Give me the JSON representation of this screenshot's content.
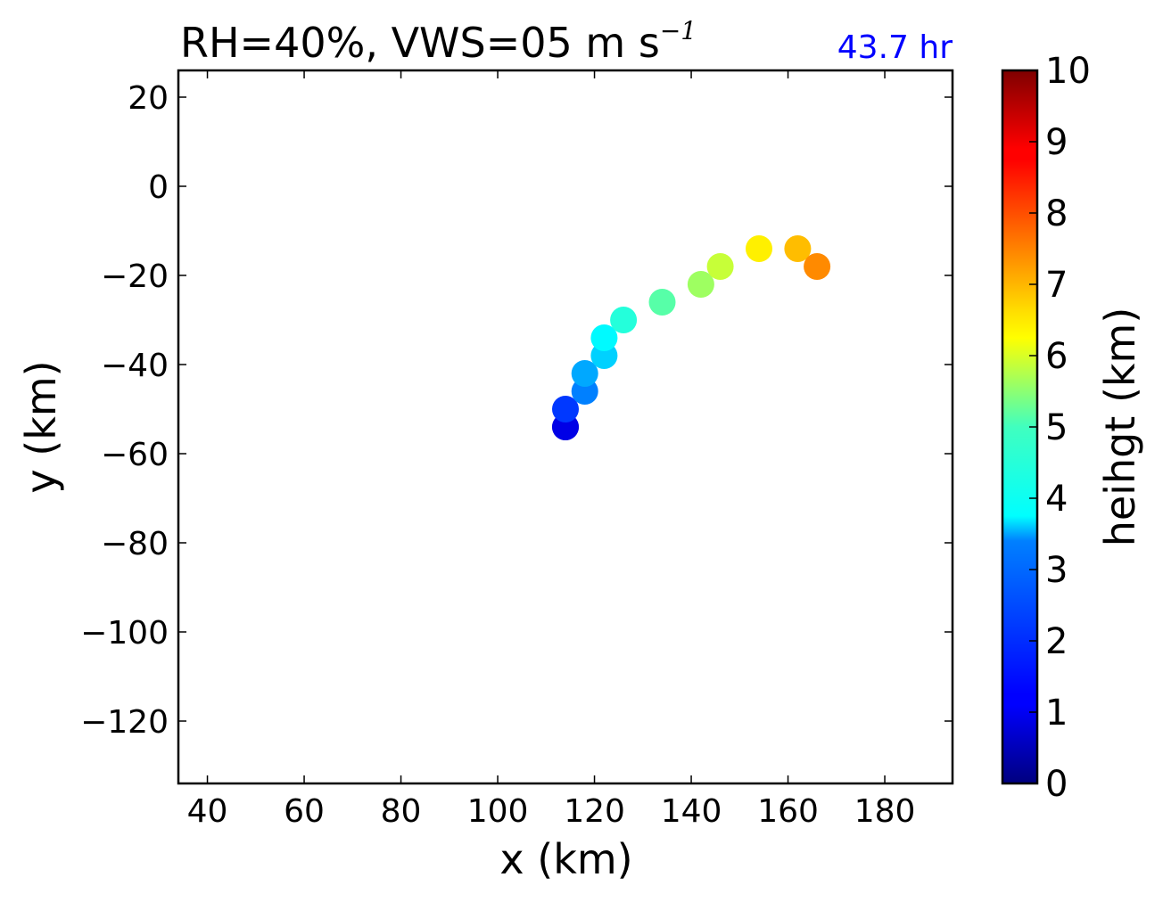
{
  "chart_data": {
    "type": "scatter",
    "title_main": "RH=40%, VWS=05 m s",
    "title_sup": "−1",
    "time_label": "43.7 hr",
    "time_label_color": "#0000ff",
    "xlabel": "x (km)",
    "ylabel": "y (km)",
    "xlim": [
      34,
      194
    ],
    "ylim": [
      -134,
      26
    ],
    "xticks": [
      40,
      60,
      80,
      100,
      120,
      140,
      160,
      180
    ],
    "xtick_labels": [
      "40",
      "60",
      "80",
      "100",
      "120",
      "140",
      "160",
      "180"
    ],
    "yticks": [
      20,
      0,
      -20,
      -40,
      -60,
      -80,
      -100,
      -120
    ],
    "ytick_labels": [
      "20",
      "0",
      "−20",
      "−40",
      "−60",
      "−80",
      "−100",
      "−120"
    ],
    "grid": false,
    "colormap": "jet",
    "colorbar": {
      "label": "heihgt (km)",
      "range": [
        0,
        10
      ],
      "ticks": [
        0,
        1,
        2,
        3,
        4,
        5,
        6,
        7,
        8,
        9,
        10
      ],
      "tick_labels": [
        "0",
        "1",
        "2",
        "3",
        "4",
        "5",
        "6",
        "7",
        "8",
        "9",
        "10"
      ]
    },
    "points": [
      {
        "x": 114,
        "y": -54,
        "height": 0.5
      },
      {
        "x": 114,
        "y": -54,
        "height": 1.0
      },
      {
        "x": 114,
        "y": -50,
        "height": 1.8
      },
      {
        "x": 118,
        "y": -46,
        "height": 2.5
      },
      {
        "x": 118,
        "y": -42,
        "height": 2.9
      },
      {
        "x": 122,
        "y": -38,
        "height": 3.3
      },
      {
        "x": 122,
        "y": -34,
        "height": 3.7
      },
      {
        "x": 126,
        "y": -30,
        "height": 4.1
      },
      {
        "x": 134,
        "y": -26,
        "height": 4.6
      },
      {
        "x": 142,
        "y": -22,
        "height": 5.3
      },
      {
        "x": 146,
        "y": -18,
        "height": 5.7
      },
      {
        "x": 154,
        "y": -14,
        "height": 6.4
      },
      {
        "x": 162,
        "y": -14,
        "height": 6.9
      },
      {
        "x": 166,
        "y": -18,
        "height": 7.4
      }
    ]
  }
}
